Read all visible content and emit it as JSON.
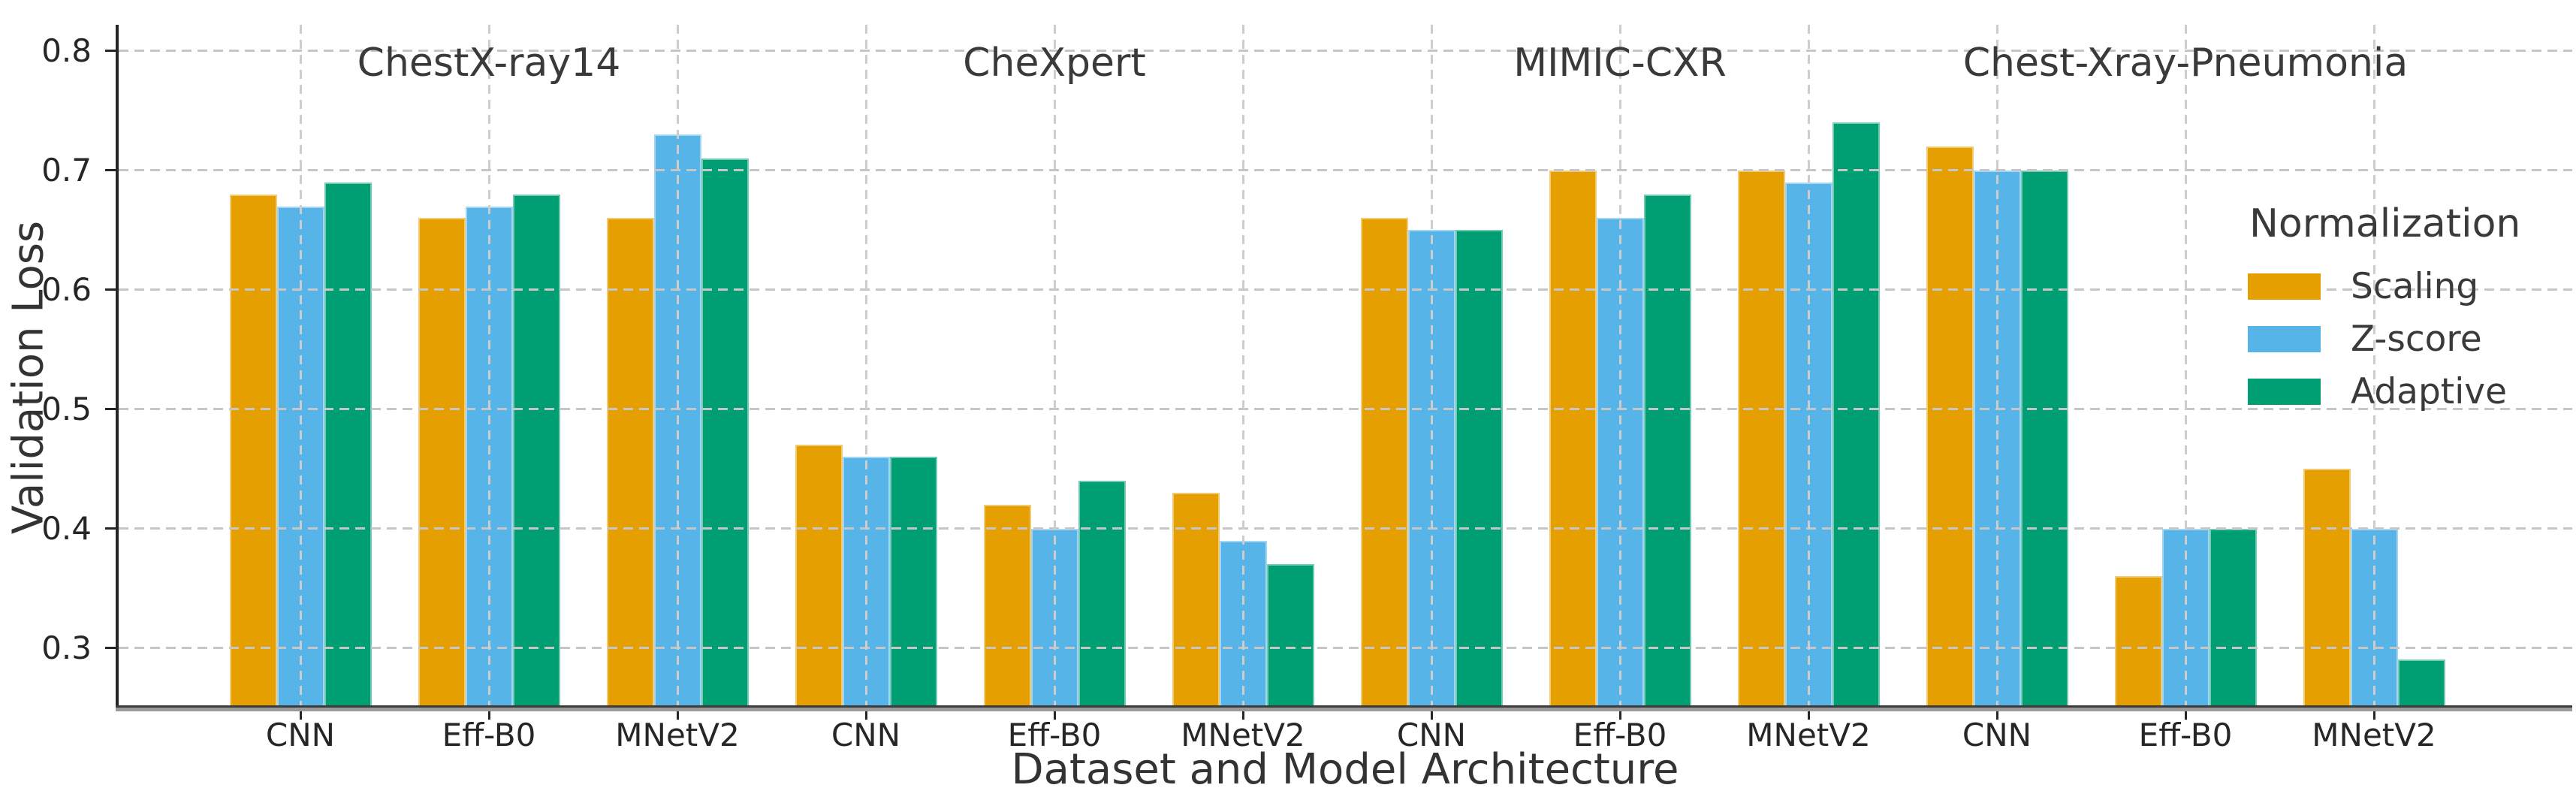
{
  "chart_data": {
    "type": "bar",
    "title": "",
    "xlabel": "Dataset and Model Architecture",
    "ylabel": "Validation Loss",
    "ylim": [
      0.25,
      0.822
    ],
    "yticks": [
      0.3,
      0.4,
      0.5,
      0.6,
      0.7,
      0.8
    ],
    "grid": "both axes, dashed light gray, drawn above bars",
    "legend": {
      "title": "Normalization",
      "position": "upper right, frameless, transparent background"
    },
    "groups": [
      "ChestX-ray14",
      "CheXpert",
      "MIMIC-CXR",
      "Chest-Xray-Pneumonia"
    ],
    "categories": [
      "CNN",
      "Eff-B0",
      "MNetV2"
    ],
    "series": [
      {
        "name": "Scaling",
        "color": "#E69F00",
        "values": [
          [
            0.68,
            0.66,
            0.66
          ],
          [
            0.47,
            0.42,
            0.43
          ],
          [
            0.66,
            0.7,
            0.7
          ],
          [
            0.72,
            0.36,
            0.45
          ]
        ]
      },
      {
        "name": "Z-score",
        "color": "#56B4E9",
        "values": [
          [
            0.67,
            0.67,
            0.73
          ],
          [
            0.46,
            0.4,
            0.39
          ],
          [
            0.65,
            0.66,
            0.69
          ],
          [
            0.7,
            0.4,
            0.4
          ]
        ]
      },
      {
        "name": "Adaptive",
        "color": "#009E73",
        "values": [
          [
            0.69,
            0.68,
            0.71
          ],
          [
            0.46,
            0.44,
            0.37
          ],
          [
            0.65,
            0.68,
            0.74
          ],
          [
            0.7,
            0.4,
            0.29
          ]
        ]
      }
    ],
    "colors": {
      "grid": "#c8c8c8",
      "axis": "#262626",
      "text": "#333333",
      "background": "#ffffff"
    }
  }
}
